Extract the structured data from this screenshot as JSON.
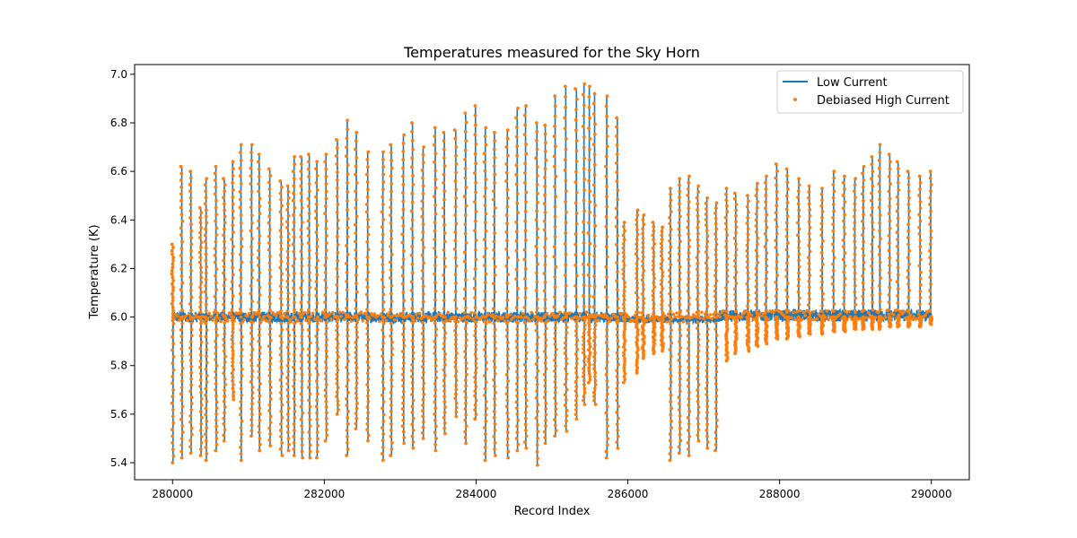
{
  "chart_data": {
    "type": "line",
    "title": "Temperatures measured for the Sky Horn",
    "xlabel": "Record Index",
    "ylabel": "Temperature (K)",
    "xlim": [
      279500,
      290500
    ],
    "ylim": [
      5.33,
      7.04
    ],
    "xticks": [
      280000,
      282000,
      284000,
      286000,
      288000,
      290000
    ],
    "xtick_labels": [
      "280000",
      "282000",
      "284000",
      "286000",
      "288000",
      "290000"
    ],
    "yticks": [
      5.4,
      5.6,
      5.8,
      6.0,
      6.2,
      6.4,
      6.6,
      6.8,
      7.0
    ],
    "ytick_labels": [
      "5.4",
      "5.6",
      "5.8",
      "6.0",
      "6.2",
      "6.4",
      "6.6",
      "6.8",
      "7.0"
    ],
    "legend_position": "top-right",
    "x_range": [
      280000,
      290000
    ],
    "baseline": 6.0,
    "spikes": [
      [
        280000,
        6.3,
        5.4
      ],
      [
        280120,
        6.62,
        5.42
      ],
      [
        280240,
        6.6,
        5.44
      ],
      [
        280370,
        6.45,
        5.43
      ],
      [
        280440,
        6.57,
        5.41
      ],
      [
        280570,
        6.62,
        5.45
      ],
      [
        280680,
        6.57,
        5.49
      ],
      [
        280790,
        6.64,
        5.66
      ],
      [
        280900,
        6.71,
        5.41
      ],
      [
        281040,
        6.71,
        5.51
      ],
      [
        281140,
        6.67,
        5.45
      ],
      [
        281280,
        6.61,
        5.47
      ],
      [
        281430,
        6.56,
        5.43
      ],
      [
        281520,
        6.54,
        5.45
      ],
      [
        281600,
        6.66,
        5.43
      ],
      [
        281700,
        6.66,
        5.42
      ],
      [
        281800,
        6.67,
        5.42
      ],
      [
        281900,
        6.64,
        5.42
      ],
      [
        282020,
        6.67,
        5.49
      ],
      [
        282170,
        6.73,
        5.6
      ],
      [
        282300,
        6.81,
        5.43
      ],
      [
        282420,
        6.76,
        5.54
      ],
      [
        282570,
        6.68,
        5.49
      ],
      [
        282770,
        6.68,
        5.41
      ],
      [
        282880,
        6.71,
        5.43
      ],
      [
        283040,
        6.75,
        5.48
      ],
      [
        283160,
        6.8,
        5.46
      ],
      [
        283300,
        6.7,
        5.5
      ],
      [
        283460,
        6.78,
        5.45
      ],
      [
        283580,
        6.76,
        5.52
      ],
      [
        283730,
        6.77,
        5.59
      ],
      [
        283860,
        6.84,
        5.48
      ],
      [
        283990,
        6.87,
        5.58
      ],
      [
        284120,
        6.78,
        5.41
      ],
      [
        284240,
        6.76,
        5.43
      ],
      [
        284410,
        6.77,
        5.42
      ],
      [
        284540,
        6.86,
        5.45
      ],
      [
        284650,
        6.87,
        5.46
      ],
      [
        284800,
        6.8,
        5.39
      ],
      [
        284910,
        6.79,
        5.48
      ],
      [
        285040,
        6.91,
        5.51
      ],
      [
        285180,
        6.95,
        5.53
      ],
      [
        285320,
        6.94,
        5.58
      ],
      [
        285420,
        6.96,
        5.64
      ],
      [
        285490,
        6.95,
        5.73
      ],
      [
        285560,
        6.92,
        5.64
      ],
      [
        285720,
        6.91,
        5.42
      ],
      [
        285860,
        6.82,
        5.46
      ],
      [
        285950,
        6.39,
        5.73
      ],
      [
        286120,
        6.44,
        5.77
      ],
      [
        286200,
        6.42,
        5.83
      ],
      [
        286340,
        6.39,
        5.85
      ],
      [
        286450,
        6.37,
        5.86
      ],
      [
        286560,
        6.53,
        5.41
      ],
      [
        286680,
        6.57,
        5.44
      ],
      [
        286800,
        6.58,
        5.43
      ],
      [
        286920,
        6.54,
        5.49
      ],
      [
        287040,
        6.49,
        5.46
      ],
      [
        287160,
        6.47,
        5.45
      ],
      [
        287300,
        6.53,
        5.82
      ],
      [
        287420,
        6.51,
        5.85
      ],
      [
        287580,
        6.5,
        5.86
      ],
      [
        287700,
        6.55,
        5.88
      ],
      [
        287820,
        6.58,
        5.89
      ],
      [
        287960,
        6.63,
        5.91
      ],
      [
        288100,
        6.61,
        5.91
      ],
      [
        288250,
        6.57,
        5.92
      ],
      [
        288390,
        6.54,
        5.93
      ],
      [
        288560,
        6.53,
        5.93
      ],
      [
        288710,
        6.6,
        5.94
      ],
      [
        288850,
        6.58,
        5.94
      ],
      [
        288990,
        6.57,
        5.95
      ],
      [
        289100,
        6.62,
        5.95
      ],
      [
        289220,
        6.66,
        5.95
      ],
      [
        289320,
        6.71,
        5.95
      ],
      [
        289450,
        6.67,
        5.96
      ],
      [
        289560,
        6.64,
        5.96
      ],
      [
        289700,
        6.6,
        5.96
      ],
      [
        289850,
        6.58,
        5.96
      ],
      [
        289990,
        6.6,
        5.97
      ]
    ],
    "series": [
      {
        "name": "Low Current",
        "style": "line",
        "color": "#1f77b4"
      },
      {
        "name": "Debiased High Current",
        "style": "scatter",
        "color": "#ff7f0e"
      }
    ]
  }
}
